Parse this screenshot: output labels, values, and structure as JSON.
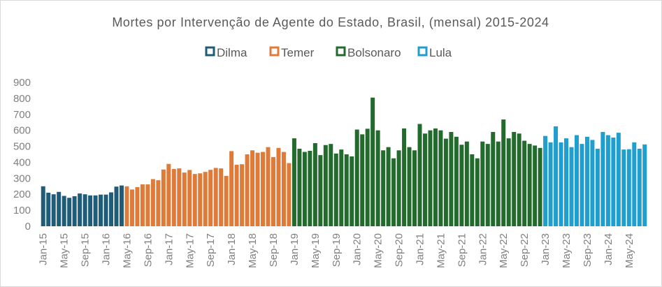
{
  "chart_data": {
    "type": "bar",
    "title": "Mortes por Intervenção de Agente do Estado, Brasil, (mensal) 2015-2024",
    "xlabel": "",
    "ylabel": "",
    "ylim": [
      0,
      900
    ],
    "yticks": [
      "0",
      "100",
      "200",
      "300",
      "400",
      "500",
      "600",
      "700",
      "800",
      "900"
    ],
    "grid": false,
    "legend_position": "top",
    "start_month": "Jan-15",
    "xtick_labels": [
      "Jan-15",
      "May-15",
      "Sep-15",
      "Jan-16",
      "May-16",
      "Sep-16",
      "Jan-17",
      "May-17",
      "Sep-17",
      "Jan-18",
      "May-18",
      "Sep-18",
      "Jan-19",
      "May-19",
      "Sep-19",
      "Jan-20",
      "May-20",
      "Sep-20",
      "Jan-21",
      "May-21",
      "Sep-21",
      "Jan-22",
      "May-22",
      "Sep-22",
      "Jan-23",
      "May-23",
      "Sep-23",
      "Jan-24",
      "May-24"
    ],
    "series": [
      {
        "name": "Dilma",
        "color": "#1f5c7a",
        "values": [
          250,
          210,
          200,
          215,
          190,
          178,
          188,
          205,
          200,
          193,
          193,
          198,
          198,
          212,
          248,
          255
        ]
      },
      {
        "name": "Temer",
        "color": "#e07a38",
        "values": [
          250,
          230,
          245,
          262,
          262,
          295,
          288,
          355,
          390,
          358,
          362,
          336,
          352,
          327,
          331,
          340,
          353,
          365,
          362,
          315,
          470,
          385,
          388,
          450,
          475,
          460,
          465,
          495,
          433,
          490,
          465,
          395
        ]
      },
      {
        "name": "Bolsonaro",
        "color": "#226b2c",
        "values": [
          550,
          485,
          465,
          472,
          520,
          445,
          508,
          515,
          455,
          480,
          450,
          437,
          605,
          575,
          610,
          805,
          600,
          475,
          495,
          425,
          475,
          612,
          495,
          475,
          640,
          580,
          600,
          612,
          600,
          548,
          590,
          560,
          510,
          530,
          450,
          425,
          530,
          515,
          590,
          530,
          668,
          550,
          590,
          580,
          535,
          515,
          505,
          490
        ]
      },
      {
        "name": "Lula",
        "color": "#1f9ed0",
        "values": [
          565,
          525,
          625,
          525,
          550,
          495,
          570,
          515,
          560,
          540,
          485,
          590,
          570,
          555,
          585,
          480,
          482,
          525,
          485,
          512
        ]
      }
    ]
  }
}
